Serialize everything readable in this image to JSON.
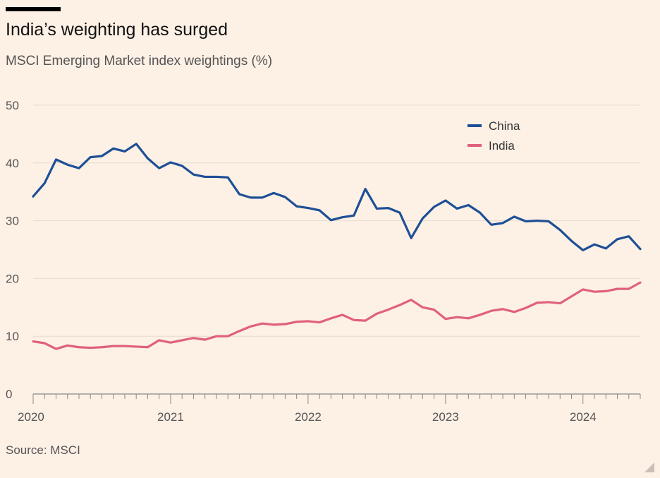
{
  "header": {
    "title": "India’s weighting has surged",
    "subtitle": "MSCI Emerging Market index weightings (%)"
  },
  "footer": {
    "source": "Source: MSCI"
  },
  "colors": {
    "background": "#fdf0e5",
    "china": "#1e4f96",
    "india": "#e0607e",
    "grid": "#e6dbd0"
  },
  "chart_data": {
    "type": "line",
    "title": "India’s weighting has surged",
    "subtitle": "MSCI Emerging Market index weightings (%)",
    "xlabel": "",
    "ylabel": "",
    "ylim": [
      0,
      50
    ],
    "yticks": [
      0,
      10,
      20,
      30,
      40,
      50
    ],
    "xtick_labels": [
      "2020",
      "2021",
      "2022",
      "2023",
      "2024"
    ],
    "xlim": [
      "2020-01",
      "2024-06"
    ],
    "legend_position": "top-right",
    "grid": true,
    "x": [
      "2020-01",
      "2020-02",
      "2020-03",
      "2020-04",
      "2020-05",
      "2020-06",
      "2020-07",
      "2020-08",
      "2020-09",
      "2020-10",
      "2020-11",
      "2020-12",
      "2021-01",
      "2021-02",
      "2021-03",
      "2021-04",
      "2021-05",
      "2021-06",
      "2021-07",
      "2021-08",
      "2021-09",
      "2021-10",
      "2021-11",
      "2021-12",
      "2022-01",
      "2022-02",
      "2022-03",
      "2022-04",
      "2022-05",
      "2022-06",
      "2022-07",
      "2022-08",
      "2022-09",
      "2022-10",
      "2022-11",
      "2022-12",
      "2023-01",
      "2023-02",
      "2023-03",
      "2023-04",
      "2023-05",
      "2023-06",
      "2023-07",
      "2023-08",
      "2023-09",
      "2023-10",
      "2023-11",
      "2023-12",
      "2024-01",
      "2024-02",
      "2024-03",
      "2024-04",
      "2024-05",
      "2024-06"
    ],
    "series": [
      {
        "name": "China",
        "color": "#1e4f96",
        "values": [
          34.2,
          36.5,
          40.6,
          39.7,
          39.1,
          41.0,
          41.2,
          42.5,
          42.0,
          43.3,
          40.8,
          39.1,
          40.1,
          39.5,
          38.0,
          37.6,
          37.6,
          37.5,
          34.6,
          34.0,
          34.0,
          34.8,
          34.1,
          32.5,
          32.2,
          31.8,
          30.1,
          30.6,
          30.9,
          35.5,
          32.1,
          32.2,
          31.4,
          27.0,
          30.4,
          32.4,
          33.5,
          32.1,
          32.7,
          31.4,
          29.3,
          29.6,
          30.7,
          29.9,
          30.0,
          29.9,
          28.4,
          26.5,
          24.9,
          25.9,
          25.2,
          26.8,
          27.3,
          25.1
        ]
      },
      {
        "name": "India",
        "color": "#e0607e",
        "values": [
          9.1,
          8.8,
          7.8,
          8.4,
          8.1,
          8.0,
          8.1,
          8.3,
          8.3,
          8.2,
          8.1,
          9.3,
          8.9,
          9.3,
          9.7,
          9.4,
          10.0,
          10.0,
          10.9,
          11.7,
          12.2,
          12.0,
          12.1,
          12.5,
          12.6,
          12.4,
          13.1,
          13.7,
          12.8,
          12.7,
          13.9,
          14.6,
          15.4,
          16.3,
          15.0,
          14.6,
          13.0,
          13.3,
          13.1,
          13.7,
          14.4,
          14.7,
          14.2,
          14.9,
          15.8,
          15.9,
          15.7,
          16.9,
          18.1,
          17.7,
          17.8,
          18.2,
          18.2,
          19.3
        ]
      }
    ]
  }
}
